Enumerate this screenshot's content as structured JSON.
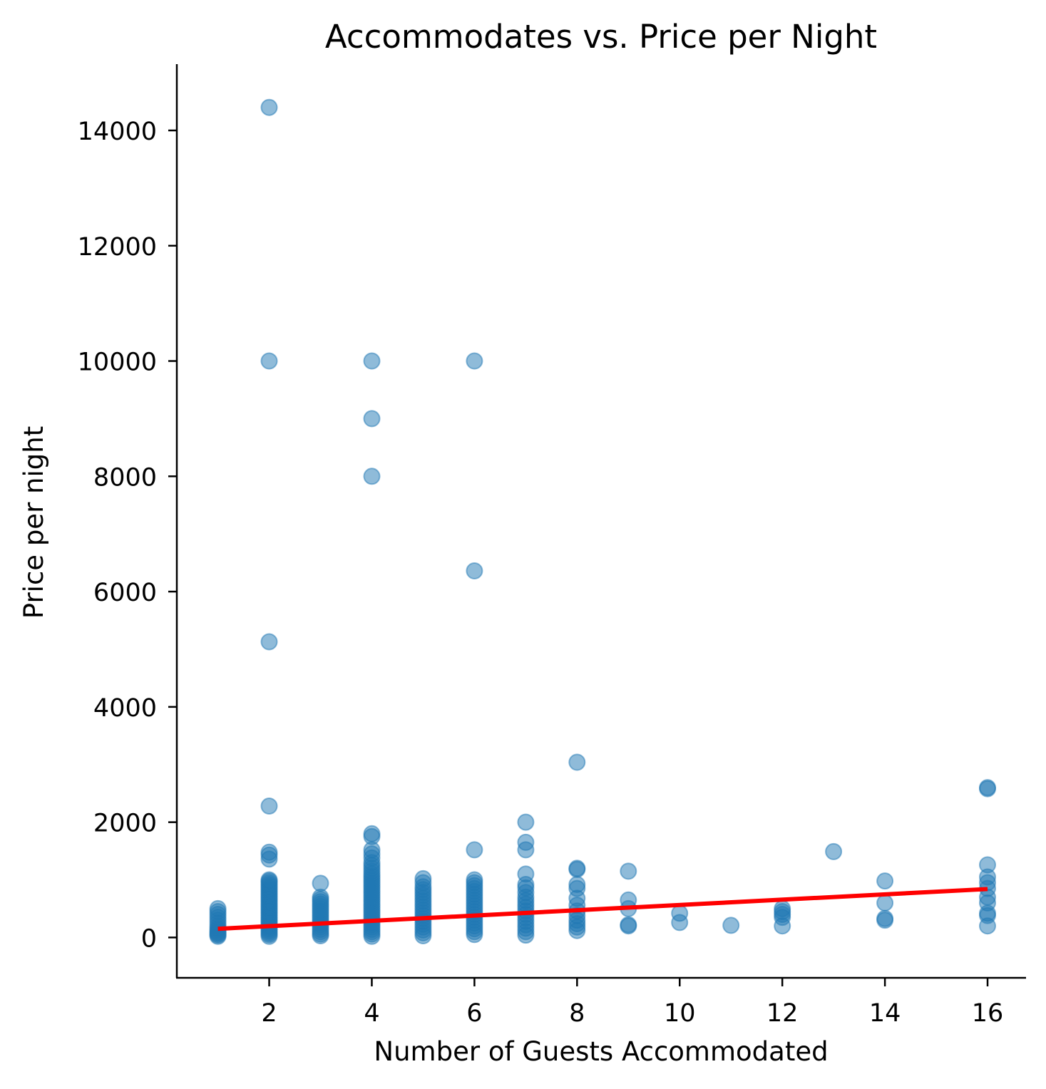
{
  "chart_data": {
    "type": "scatter",
    "title": "Accommodates vs. Price per Night",
    "xlabel": "Number of Guests Accommodated",
    "ylabel": "Price per night",
    "xlim": [
      0.2,
      16.75
    ],
    "ylim": [
      -700,
      15150
    ],
    "xticks": [
      2,
      4,
      6,
      8,
      10,
      12,
      14,
      16
    ],
    "yticks": [
      0,
      2000,
      4000,
      6000,
      8000,
      10000,
      12000,
      14000
    ],
    "grid": false,
    "colors": {
      "points": "#1f77b4",
      "regression": "#ff0000"
    },
    "points": [
      [
        1,
        20
      ],
      [
        1,
        40
      ],
      [
        1,
        60
      ],
      [
        1,
        80
      ],
      [
        1,
        100
      ],
      [
        1,
        130
      ],
      [
        1,
        160
      ],
      [
        1,
        200
      ],
      [
        1,
        250
      ],
      [
        1,
        300
      ],
      [
        1,
        350
      ],
      [
        1,
        400
      ],
      [
        1,
        450
      ],
      [
        1,
        500
      ],
      [
        2,
        20
      ],
      [
        2,
        50
      ],
      [
        2,
        80
      ],
      [
        2,
        110
      ],
      [
        2,
        140
      ],
      [
        2,
        170
      ],
      [
        2,
        200
      ],
      [
        2,
        230
      ],
      [
        2,
        260
      ],
      [
        2,
        290
      ],
      [
        2,
        320
      ],
      [
        2,
        350
      ],
      [
        2,
        380
      ],
      [
        2,
        410
      ],
      [
        2,
        440
      ],
      [
        2,
        470
      ],
      [
        2,
        500
      ],
      [
        2,
        530
      ],
      [
        2,
        560
      ],
      [
        2,
        590
      ],
      [
        2,
        620
      ],
      [
        2,
        650
      ],
      [
        2,
        680
      ],
      [
        2,
        710
      ],
      [
        2,
        740
      ],
      [
        2,
        770
      ],
      [
        2,
        800
      ],
      [
        2,
        830
      ],
      [
        2,
        860
      ],
      [
        2,
        890
      ],
      [
        2,
        920
      ],
      [
        2,
        950
      ],
      [
        2,
        980
      ],
      [
        2,
        1000
      ],
      [
        2,
        1360
      ],
      [
        2,
        1430
      ],
      [
        2,
        1480
      ],
      [
        2,
        2280
      ],
      [
        2,
        5130
      ],
      [
        2,
        10000
      ],
      [
        2,
        14400
      ],
      [
        3,
        30
      ],
      [
        3,
        60
      ],
      [
        3,
        100
      ],
      [
        3,
        140
      ],
      [
        3,
        180
      ],
      [
        3,
        220
      ],
      [
        3,
        260
      ],
      [
        3,
        300
      ],
      [
        3,
        340
      ],
      [
        3,
        380
      ],
      [
        3,
        420
      ],
      [
        3,
        460
      ],
      [
        3,
        500
      ],
      [
        3,
        540
      ],
      [
        3,
        580
      ],
      [
        3,
        620
      ],
      [
        3,
        660
      ],
      [
        3,
        700
      ],
      [
        3,
        940
      ],
      [
        4,
        20
      ],
      [
        4,
        60
      ],
      [
        4,
        100
      ],
      [
        4,
        140
      ],
      [
        4,
        180
      ],
      [
        4,
        220
      ],
      [
        4,
        260
      ],
      [
        4,
        300
      ],
      [
        4,
        340
      ],
      [
        4,
        380
      ],
      [
        4,
        420
      ],
      [
        4,
        460
      ],
      [
        4,
        500
      ],
      [
        4,
        540
      ],
      [
        4,
        580
      ],
      [
        4,
        620
      ],
      [
        4,
        660
      ],
      [
        4,
        700
      ],
      [
        4,
        740
      ],
      [
        4,
        780
      ],
      [
        4,
        820
      ],
      [
        4,
        860
      ],
      [
        4,
        900
      ],
      [
        4,
        940
      ],
      [
        4,
        980
      ],
      [
        4,
        1020
      ],
      [
        4,
        1060
      ],
      [
        4,
        1100
      ],
      [
        4,
        1150
      ],
      [
        4,
        1200
      ],
      [
        4,
        1250
      ],
      [
        4,
        1300
      ],
      [
        4,
        1380
      ],
      [
        4,
        1450
      ],
      [
        4,
        1520
      ],
      [
        4,
        1750
      ],
      [
        4,
        1800
      ],
      [
        4,
        8000
      ],
      [
        4,
        9000
      ],
      [
        4,
        10000
      ],
      [
        5,
        30
      ],
      [
        5,
        80
      ],
      [
        5,
        130
      ],
      [
        5,
        180
      ],
      [
        5,
        230
      ],
      [
        5,
        280
      ],
      [
        5,
        330
      ],
      [
        5,
        380
      ],
      [
        5,
        430
      ],
      [
        5,
        480
      ],
      [
        5,
        530
      ],
      [
        5,
        580
      ],
      [
        5,
        630
      ],
      [
        5,
        680
      ],
      [
        5,
        730
      ],
      [
        5,
        780
      ],
      [
        5,
        830
      ],
      [
        5,
        880
      ],
      [
        5,
        950
      ],
      [
        5,
        1020
      ],
      [
        6,
        50
      ],
      [
        6,
        100
      ],
      [
        6,
        150
      ],
      [
        6,
        200
      ],
      [
        6,
        250
      ],
      [
        6,
        300
      ],
      [
        6,
        350
      ],
      [
        6,
        400
      ],
      [
        6,
        450
      ],
      [
        6,
        500
      ],
      [
        6,
        550
      ],
      [
        6,
        600
      ],
      [
        6,
        650
      ],
      [
        6,
        700
      ],
      [
        6,
        750
      ],
      [
        6,
        800
      ],
      [
        6,
        850
      ],
      [
        6,
        900
      ],
      [
        6,
        950
      ],
      [
        6,
        1000
      ],
      [
        6,
        1520
      ],
      [
        6,
        6360
      ],
      [
        6,
        10000
      ],
      [
        7,
        40
      ],
      [
        7,
        100
      ],
      [
        7,
        160
      ],
      [
        7,
        220
      ],
      [
        7,
        280
      ],
      [
        7,
        340
      ],
      [
        7,
        400
      ],
      [
        7,
        460
      ],
      [
        7,
        520
      ],
      [
        7,
        580
      ],
      [
        7,
        640
      ],
      [
        7,
        700
      ],
      [
        7,
        780
      ],
      [
        7,
        860
      ],
      [
        7,
        920
      ],
      [
        7,
        1100
      ],
      [
        7,
        1520
      ],
      [
        7,
        1650
      ],
      [
        7,
        2000
      ],
      [
        8,
        120
      ],
      [
        8,
        180
      ],
      [
        8,
        240
      ],
      [
        8,
        300
      ],
      [
        8,
        380
      ],
      [
        8,
        460
      ],
      [
        8,
        560
      ],
      [
        8,
        680
      ],
      [
        8,
        850
      ],
      [
        8,
        920
      ],
      [
        8,
        1180
      ],
      [
        8,
        1200
      ],
      [
        8,
        3040
      ],
      [
        9,
        200
      ],
      [
        9,
        220
      ],
      [
        9,
        500
      ],
      [
        9,
        650
      ],
      [
        9,
        1150
      ],
      [
        10,
        260
      ],
      [
        10,
        420
      ],
      [
        11,
        210
      ],
      [
        12,
        200
      ],
      [
        12,
        350
      ],
      [
        12,
        400
      ],
      [
        12,
        450
      ],
      [
        12,
        500
      ],
      [
        13,
        1490
      ],
      [
        14,
        300
      ],
      [
        14,
        330
      ],
      [
        14,
        600
      ],
      [
        14,
        980
      ],
      [
        16,
        200
      ],
      [
        16,
        380
      ],
      [
        16,
        420
      ],
      [
        16,
        600
      ],
      [
        16,
        700
      ],
      [
        16,
        850
      ],
      [
        16,
        950
      ],
      [
        16,
        1050
      ],
      [
        16,
        1260
      ],
      [
        16,
        2580
      ],
      [
        16,
        2600
      ]
    ],
    "regression": {
      "x": [
        1,
        16
      ],
      "y": [
        150,
        840
      ]
    }
  }
}
